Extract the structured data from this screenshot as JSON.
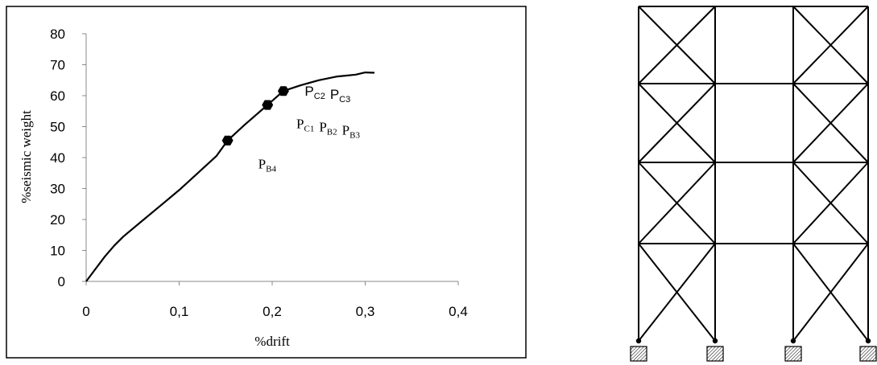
{
  "chart_data": {
    "type": "line",
    "xlabel": "%drift",
    "ylabel": "%seismic weight",
    "xlim": [
      0,
      0.4
    ],
    "ylim": [
      0,
      80
    ],
    "x_ticks": [
      "0",
      "0,1",
      "0,2",
      "0,3",
      "0,4"
    ],
    "y_ticks": [
      "0",
      "10",
      "20",
      "30",
      "40",
      "50",
      "60",
      "70",
      "80"
    ],
    "grid": false,
    "series": [
      {
        "points": [
          [
            0,
            0
          ],
          [
            0.01,
            4
          ],
          [
            0.02,
            8
          ],
          [
            0.03,
            11.5
          ],
          [
            0.04,
            14.5
          ],
          [
            0.06,
            19.5
          ],
          [
            0.08,
            24.5
          ],
          [
            0.1,
            29.5
          ],
          [
            0.12,
            35
          ],
          [
            0.14,
            40.5
          ],
          [
            0.152,
            45.5
          ],
          [
            0.17,
            50.5
          ],
          [
            0.195,
            57
          ],
          [
            0.212,
            61.5
          ],
          [
            0.23,
            63.3
          ],
          [
            0.25,
            65
          ],
          [
            0.27,
            66.2
          ],
          [
            0.28,
            66.5
          ],
          [
            0.29,
            66.8
          ],
          [
            0.3,
            67.5
          ],
          [
            0.31,
            67.4
          ]
        ],
        "markers": [
          [
            0.152,
            45.5
          ],
          [
            0.195,
            57
          ],
          [
            0.212,
            61.5
          ]
        ]
      }
    ],
    "annotations": [
      {
        "id": "ann-c2-c3",
        "parts": [
          [
            "P",
            "C2"
          ],
          [
            "P",
            "C3"
          ]
        ],
        "x": 0.235,
        "y": 60,
        "style": "sans"
      },
      {
        "id": "ann-c1-b2-b3",
        "parts": [
          [
            "P",
            "C1"
          ],
          [
            "P",
            "B2"
          ],
          [
            "P",
            "B3"
          ]
        ],
        "x": 0.226,
        "y": 49.5,
        "style": "serif"
      },
      {
        "id": "ann-b4",
        "parts": [
          [
            "P",
            "B4"
          ]
        ],
        "x": 0.185,
        "y": 36.5,
        "style": "serif"
      }
    ]
  },
  "frame": {
    "stories": 4,
    "bays": 3,
    "braced_bays": [
      0,
      2
    ]
  }
}
